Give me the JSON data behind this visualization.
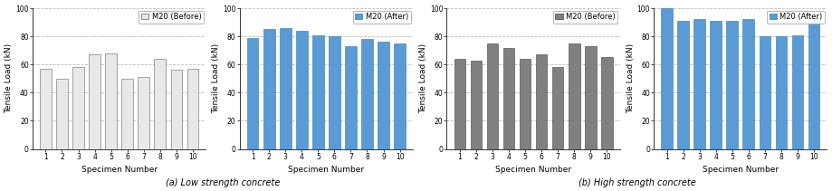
{
  "subplot1": {
    "values": [
      57,
      50,
      58,
      67,
      68,
      50,
      51,
      64,
      56,
      57
    ],
    "color": "#e8e8e8",
    "edge_color": "#666666",
    "legend_label": "M20 (Before)",
    "ylabel": "Tensile Load (kN)",
    "xlabel": "Specimen Number",
    "ylim": [
      0,
      100
    ],
    "yticks": [
      0,
      20,
      40,
      60,
      80,
      100
    ]
  },
  "subplot2": {
    "values": [
      79,
      85,
      86,
      84,
      81,
      80,
      73,
      78,
      76,
      75
    ],
    "color": "#5b9bd5",
    "edge_color": "#2e75b6",
    "legend_label": "M20 (After)",
    "ylabel": "Tensile Load (kN)",
    "xlabel": "Specimen Number",
    "ylim": [
      0,
      100
    ],
    "yticks": [
      0,
      20,
      40,
      60,
      80,
      100
    ]
  },
  "subplot3": {
    "values": [
      64,
      63,
      75,
      72,
      64,
      67,
      58,
      75,
      73,
      65
    ],
    "color": "#808080",
    "edge_color": "#404040",
    "legend_label": "M20 (Before)",
    "ylabel": "Tensile Load (kN)",
    "xlabel": "Specimen Number",
    "ylim": [
      0,
      100
    ],
    "yticks": [
      0,
      20,
      40,
      60,
      80,
      100
    ]
  },
  "subplot4": {
    "values": [
      100,
      91,
      92,
      91,
      91,
      92,
      80,
      80,
      81,
      93
    ],
    "color": "#5b9bd5",
    "edge_color": "#2e75b6",
    "legend_label": "M20 (After)",
    "ylabel": "Tensile Load (kN)",
    "xlabel": "Specimen Number",
    "ylim": [
      0,
      100
    ],
    "yticks": [
      0,
      20,
      40,
      60,
      80,
      100
    ]
  },
  "caption_left": "(a) Low strength concrete",
  "caption_right": "(b) High strength concrete",
  "specimens": [
    1,
    2,
    3,
    4,
    5,
    6,
    7,
    8,
    9,
    10
  ],
  "grid_color": "#aaaaaa",
  "grid_style": "--",
  "grid_alpha": 0.8,
  "tick_fontsize": 5.5,
  "label_fontsize": 6.5,
  "legend_fontsize": 6,
  "caption_fontsize": 7
}
